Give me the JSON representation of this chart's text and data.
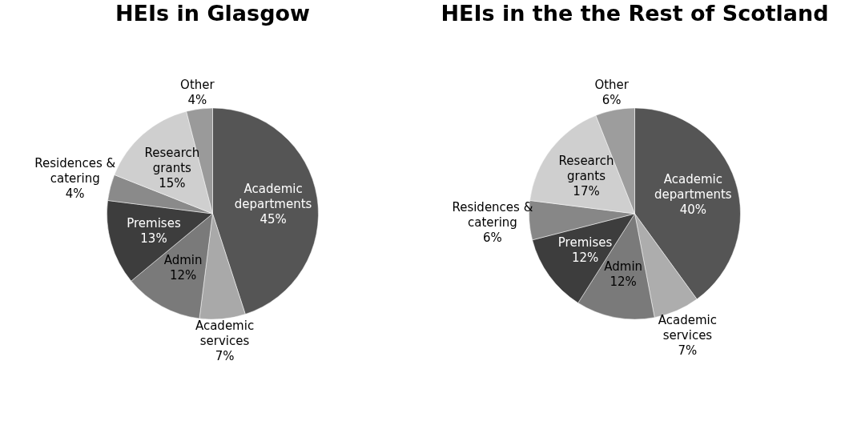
{
  "chart_data": [
    {
      "type": "pie",
      "title": "HEIs in Glasgow",
      "categories": [
        "Academic departments",
        "Academic services",
        "Admin",
        "Premises",
        "Residences & catering",
        "Research grants",
        "Other"
      ],
      "values": [
        45,
        7,
        12,
        13,
        4,
        15,
        4
      ],
      "value_labels": [
        "45%",
        "7%",
        "12%",
        "13%",
        "4%",
        "15%",
        "4%"
      ],
      "colors": [
        "#555555",
        "#a9a9a9",
        "#7a7a7a",
        "#3d3d3d",
        "#8a8a8a",
        "#cfcfcf",
        "#9a9a9a"
      ]
    },
    {
      "type": "pie",
      "title": "HEIs in the the Rest of Scotland",
      "categories": [
        "Academic departments",
        "Academic services",
        "Admin",
        "Premises",
        "Residences & catering",
        "Research grants",
        "Other"
      ],
      "values": [
        40,
        7,
        12,
        12,
        6,
        17,
        6
      ],
      "value_labels": [
        "40%",
        "7%",
        "12%",
        "12%",
        "6%",
        "17%",
        "6%"
      ],
      "colors": [
        "#555555",
        "#adadad",
        "#7a7a7a",
        "#3d3d3d",
        "#878787",
        "#cfcfcf",
        "#9d9d9d"
      ]
    }
  ]
}
